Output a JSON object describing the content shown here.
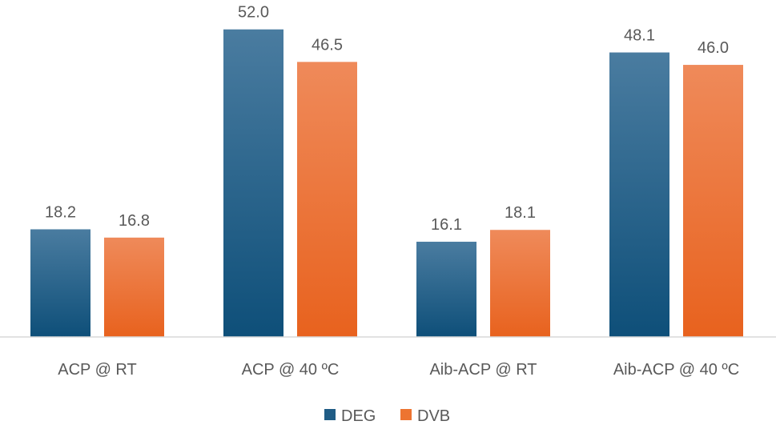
{
  "chart_data": {
    "type": "bar",
    "title": "",
    "xlabel": "",
    "ylabel": "",
    "ylim": [
      0,
      55
    ],
    "grid": false,
    "legend_position": "bottom",
    "categories": [
      "ACP @ RT",
      "ACP @ 40 ºC",
      "Aib-ACP @ RT",
      "Aib-ACP @ 40 ºC"
    ],
    "series": [
      {
        "name": "DEG",
        "color": "#1F5C85",
        "values": [
          18.2,
          52.0,
          16.1,
          48.1
        ],
        "labels": [
          "18.2",
          "52.0",
          "16.1",
          "48.1"
        ]
      },
      {
        "name": "DVB",
        "color": "#ED7431",
        "values": [
          16.8,
          46.5,
          18.1,
          46.0
        ],
        "labels": [
          "16.8",
          "46.5",
          "18.1",
          "46.0"
        ]
      }
    ]
  }
}
